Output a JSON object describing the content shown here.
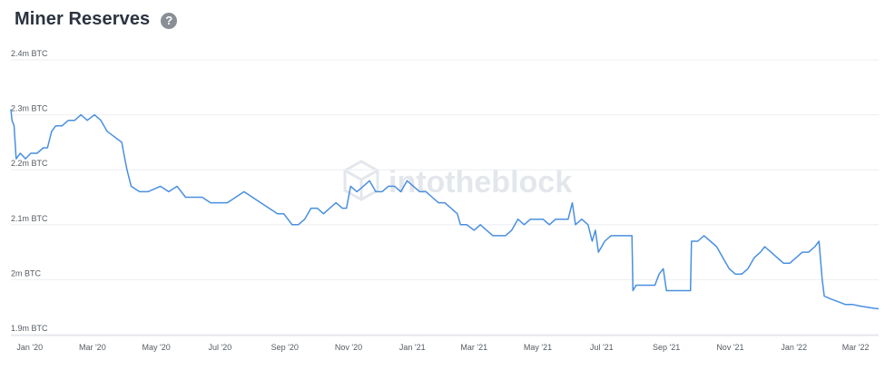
{
  "header": {
    "title": "Miner Reserves",
    "help_icon": "question-circle-icon"
  },
  "watermark": {
    "text": "intotheblock",
    "icon": "cube-logo-icon"
  },
  "colors": {
    "line": "#4a8fe0",
    "title": "#2b3340",
    "grid": "#eceef1",
    "help_icon": "#8a8f96"
  },
  "chart_data": {
    "type": "line",
    "title": "Miner Reserves",
    "xlabel": "",
    "ylabel": "",
    "ylim": [
      1.9,
      2.4
    ],
    "xlim": [
      "2019-12-14",
      "2022-03-23"
    ],
    "grid": true,
    "y_ticks": [
      {
        "value": 2.4,
        "label": "2.4m BTC"
      },
      {
        "value": 2.3,
        "label": "2.3m BTC"
      },
      {
        "value": 2.2,
        "label": "2.2m BTC"
      },
      {
        "value": 2.1,
        "label": "2.1m BTC"
      },
      {
        "value": 2.0,
        "label": "2m BTC"
      },
      {
        "value": 1.9,
        "label": "1.9m BTC"
      }
    ],
    "x_ticks": [
      {
        "date": "2020-01-01",
        "label": "Jan '20"
      },
      {
        "date": "2020-03-01",
        "label": "Mar '20"
      },
      {
        "date": "2020-05-01",
        "label": "May '20"
      },
      {
        "date": "2020-07-01",
        "label": "Jul '20"
      },
      {
        "date": "2020-09-01",
        "label": "Sep '20"
      },
      {
        "date": "2020-11-01",
        "label": "Nov '20"
      },
      {
        "date": "2021-01-01",
        "label": "Jan '21"
      },
      {
        "date": "2021-03-01",
        "label": "Mar '21"
      },
      {
        "date": "2021-05-01",
        "label": "May '21"
      },
      {
        "date": "2021-07-01",
        "label": "Jul '21"
      },
      {
        "date": "2021-09-01",
        "label": "Sep '21"
      },
      {
        "date": "2021-11-01",
        "label": "Nov '21"
      },
      {
        "date": "2022-01-01",
        "label": "Jan '22"
      },
      {
        "date": "2022-03-01",
        "label": "Mar '22"
      }
    ],
    "series": [
      {
        "values": [
          [
            "2019-12-14",
            2.31
          ],
          [
            "2019-12-15",
            2.29
          ],
          [
            "2019-12-17",
            2.28
          ],
          [
            "2019-12-19",
            2.22
          ],
          [
            "2019-12-23",
            2.23
          ],
          [
            "2019-12-28",
            2.22
          ],
          [
            "2020-01-02",
            2.23
          ],
          [
            "2020-01-08",
            2.23
          ],
          [
            "2020-01-14",
            2.24
          ],
          [
            "2020-01-18",
            2.24
          ],
          [
            "2020-01-22",
            2.27
          ],
          [
            "2020-01-26",
            2.28
          ],
          [
            "2020-02-01",
            2.28
          ],
          [
            "2020-02-07",
            2.29
          ],
          [
            "2020-02-13",
            2.29
          ],
          [
            "2020-02-19",
            2.3
          ],
          [
            "2020-02-25",
            2.29
          ],
          [
            "2020-03-03",
            2.3
          ],
          [
            "2020-03-09",
            2.29
          ],
          [
            "2020-03-15",
            2.27
          ],
          [
            "2020-03-22",
            2.26
          ],
          [
            "2020-03-29",
            2.25
          ],
          [
            "2020-04-01",
            2.22
          ],
          [
            "2020-04-03",
            2.2
          ],
          [
            "2020-04-07",
            2.17
          ],
          [
            "2020-04-15",
            2.16
          ],
          [
            "2020-04-23",
            2.16
          ],
          [
            "2020-05-05",
            2.17
          ],
          [
            "2020-05-13",
            2.16
          ],
          [
            "2020-05-21",
            2.17
          ],
          [
            "2020-05-29",
            2.15
          ],
          [
            "2020-06-06",
            2.15
          ],
          [
            "2020-06-14",
            2.15
          ],
          [
            "2020-06-22",
            2.14
          ],
          [
            "2020-06-30",
            2.14
          ],
          [
            "2020-07-08",
            2.14
          ],
          [
            "2020-07-16",
            2.15
          ],
          [
            "2020-07-24",
            2.16
          ],
          [
            "2020-08-01",
            2.15
          ],
          [
            "2020-08-09",
            2.14
          ],
          [
            "2020-08-17",
            2.13
          ],
          [
            "2020-08-25",
            2.12
          ],
          [
            "2020-08-31",
            2.12
          ],
          [
            "2020-09-04",
            2.11
          ],
          [
            "2020-09-08",
            2.1
          ],
          [
            "2020-09-14",
            2.1
          ],
          [
            "2020-09-20",
            2.11
          ],
          [
            "2020-09-26",
            2.13
          ],
          [
            "2020-10-02",
            2.13
          ],
          [
            "2020-10-08",
            2.12
          ],
          [
            "2020-10-14",
            2.13
          ],
          [
            "2020-10-20",
            2.14
          ],
          [
            "2020-10-26",
            2.13
          ],
          [
            "2020-10-30",
            2.13
          ],
          [
            "2020-11-03",
            2.17
          ],
          [
            "2020-11-09",
            2.16
          ],
          [
            "2020-11-15",
            2.17
          ],
          [
            "2020-11-21",
            2.18
          ],
          [
            "2020-11-27",
            2.16
          ],
          [
            "2020-12-03",
            2.16
          ],
          [
            "2020-12-09",
            2.17
          ],
          [
            "2020-12-15",
            2.17
          ],
          [
            "2020-12-21",
            2.16
          ],
          [
            "2020-12-27",
            2.18
          ],
          [
            "2021-01-02",
            2.17
          ],
          [
            "2021-01-08",
            2.16
          ],
          [
            "2021-01-14",
            2.16
          ],
          [
            "2021-01-20",
            2.15
          ],
          [
            "2021-01-26",
            2.14
          ],
          [
            "2021-02-01",
            2.14
          ],
          [
            "2021-02-07",
            2.13
          ],
          [
            "2021-02-13",
            2.12
          ],
          [
            "2021-02-16",
            2.1
          ],
          [
            "2021-02-22",
            2.1
          ],
          [
            "2021-03-01",
            2.09
          ],
          [
            "2021-03-07",
            2.1
          ],
          [
            "2021-03-13",
            2.09
          ],
          [
            "2021-03-19",
            2.08
          ],
          [
            "2021-03-25",
            2.08
          ],
          [
            "2021-03-31",
            2.08
          ],
          [
            "2021-04-06",
            2.09
          ],
          [
            "2021-04-12",
            2.11
          ],
          [
            "2021-04-18",
            2.1
          ],
          [
            "2021-04-24",
            2.11
          ],
          [
            "2021-04-30",
            2.11
          ],
          [
            "2021-05-06",
            2.11
          ],
          [
            "2021-05-12",
            2.1
          ],
          [
            "2021-05-18",
            2.11
          ],
          [
            "2021-05-24",
            2.11
          ],
          [
            "2021-05-30",
            2.11
          ],
          [
            "2021-06-03",
            2.14
          ],
          [
            "2021-06-06",
            2.1
          ],
          [
            "2021-06-12",
            2.11
          ],
          [
            "2021-06-18",
            2.1
          ],
          [
            "2021-06-22",
            2.07
          ],
          [
            "2021-06-25",
            2.09
          ],
          [
            "2021-06-28",
            2.05
          ],
          [
            "2021-07-01",
            2.06
          ],
          [
            "2021-07-04",
            2.07
          ],
          [
            "2021-07-10",
            2.08
          ],
          [
            "2021-07-16",
            2.08
          ],
          [
            "2021-07-22",
            2.08
          ],
          [
            "2021-07-28",
            2.08
          ],
          [
            "2021-07-30",
            2.08
          ],
          [
            "2021-07-31",
            1.98
          ],
          [
            "2021-08-03",
            1.99
          ],
          [
            "2021-08-09",
            1.99
          ],
          [
            "2021-08-15",
            1.99
          ],
          [
            "2021-08-21",
            1.99
          ],
          [
            "2021-08-25",
            2.01
          ],
          [
            "2021-08-29",
            2.02
          ],
          [
            "2021-09-01",
            1.98
          ],
          [
            "2021-09-07",
            1.98
          ],
          [
            "2021-09-13",
            1.98
          ],
          [
            "2021-09-19",
            1.98
          ],
          [
            "2021-09-24",
            1.98
          ],
          [
            "2021-09-25",
            2.07
          ],
          [
            "2021-10-01",
            2.07
          ],
          [
            "2021-10-07",
            2.08
          ],
          [
            "2021-10-13",
            2.07
          ],
          [
            "2021-10-19",
            2.06
          ],
          [
            "2021-10-25",
            2.04
          ],
          [
            "2021-10-31",
            2.02
          ],
          [
            "2021-11-06",
            2.01
          ],
          [
            "2021-11-12",
            2.01
          ],
          [
            "2021-11-18",
            2.02
          ],
          [
            "2021-11-24",
            2.04
          ],
          [
            "2021-11-30",
            2.05
          ],
          [
            "2021-12-04",
            2.06
          ],
          [
            "2021-12-10",
            2.05
          ],
          [
            "2021-12-16",
            2.04
          ],
          [
            "2021-12-22",
            2.03
          ],
          [
            "2021-12-28",
            2.03
          ],
          [
            "2022-01-03",
            2.04
          ],
          [
            "2022-01-09",
            2.05
          ],
          [
            "2022-01-15",
            2.05
          ],
          [
            "2022-01-21",
            2.06
          ],
          [
            "2022-01-25",
            2.07
          ],
          [
            "2022-01-28",
            2.0
          ],
          [
            "2022-01-30",
            1.97
          ],
          [
            "2022-02-05",
            1.965
          ],
          [
            "2022-02-12",
            1.96
          ],
          [
            "2022-02-19",
            1.955
          ],
          [
            "2022-02-26",
            1.955
          ],
          [
            "2022-03-05",
            1.952
          ],
          [
            "2022-03-12",
            1.95
          ],
          [
            "2022-03-18",
            1.948
          ],
          [
            "2022-03-23",
            1.947
          ]
        ]
      }
    ]
  }
}
